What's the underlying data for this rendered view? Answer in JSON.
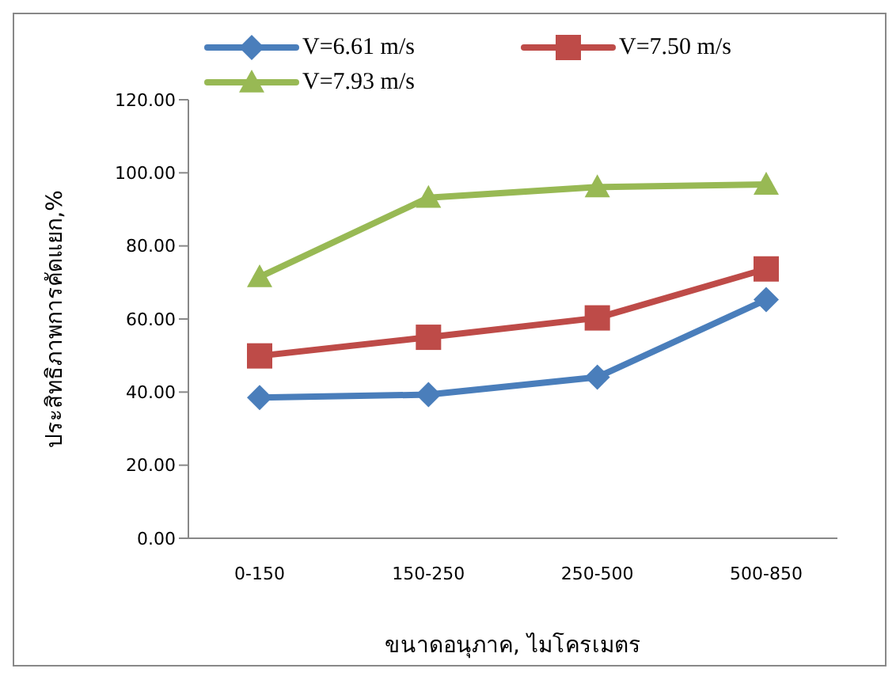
{
  "chart_data": {
    "type": "line",
    "xlabel": "ขนาดอนุภาค, ไมโครเมตร",
    "ylabel": "ประสิทธิภาพการคัดแยก,%",
    "categories": [
      "0-150",
      "150-250",
      "250-500",
      "500-850"
    ],
    "series": [
      {
        "name": "V=6.61 m/s",
        "color": "#4a7ebb",
        "marker": "diamond",
        "values": [
          38.5,
          39.3,
          44.1,
          65.3
        ]
      },
      {
        "name": "V=7.50 m/s",
        "color": "#be4b48",
        "marker": "square",
        "values": [
          49.9,
          55.0,
          60.3,
          73.7
        ]
      },
      {
        "name": "V=7.93 m/s",
        "color": "#98b954",
        "marker": "triangle",
        "values": [
          71.5,
          93.2,
          96.1,
          96.8
        ]
      }
    ],
    "ylim": [
      0,
      120
    ],
    "yticks": [
      {
        "value": 0,
        "label": "0.00"
      },
      {
        "value": 20,
        "label": "20.00"
      },
      {
        "value": 40,
        "label": "40.00"
      },
      {
        "value": 60,
        "label": "60.00"
      },
      {
        "value": 80,
        "label": "80.00"
      },
      {
        "value": 100,
        "label": "100.00"
      },
      {
        "value": 120,
        "label": "120.00"
      }
    ],
    "grid": false,
    "legend": "top"
  }
}
